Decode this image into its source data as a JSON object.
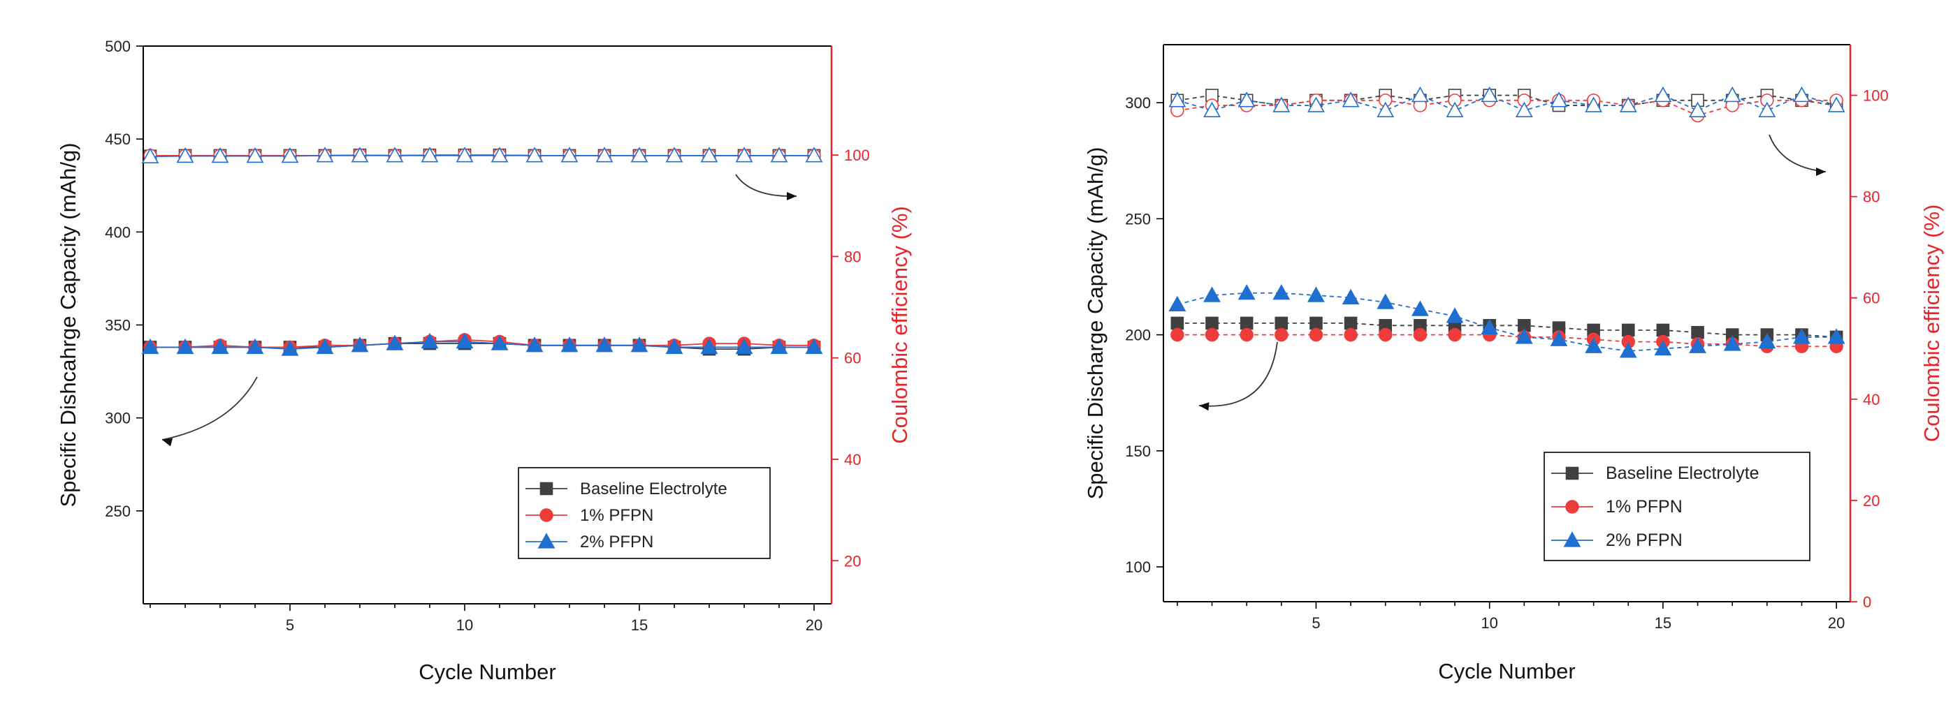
{
  "chart_data": [
    {
      "type": "line",
      "xlabel": "Cycle Number",
      "ylabel": "Specific Dishcahrge Capacity (mAh/g)",
      "y2label": "Coulombic efficiency (%)",
      "xlim": [
        0.8,
        20.5
      ],
      "ylim": [
        200,
        500
      ],
      "y2lim": [
        11.5,
        121.5
      ],
      "xticks": [
        5,
        10,
        15,
        20
      ],
      "yticks": [
        250,
        300,
        350,
        400,
        450,
        500
      ],
      "y2ticks": [
        20,
        40,
        60,
        80,
        100
      ],
      "legend_position": "bottom-right",
      "legend": [
        "Baseline Electrolyte",
        "1% PFPN",
        "2% PFPN"
      ],
      "colors": {
        "baseline": "#404040",
        "pfpn1": "#ee3b3b",
        "pfpn2": "#1f6fd1",
        "right_axis": "#e8232a"
      },
      "x": [
        1,
        2,
        3,
        4,
        5,
        6,
        7,
        8,
        9,
        10,
        11,
        12,
        13,
        14,
        15,
        16,
        17,
        18,
        19,
        20
      ],
      "capacity_series": [
        {
          "name": "Baseline Electrolyte",
          "marker": "square",
          "values": [
            338,
            338,
            338,
            338,
            338,
            338,
            339,
            340,
            340,
            340,
            340,
            339,
            339,
            339,
            339,
            338,
            337,
            337,
            338,
            338
          ]
        },
        {
          "name": "1% PFPN",
          "marker": "circle",
          "values": [
            338,
            338,
            339,
            338,
            338,
            339,
            339,
            340,
            341,
            342,
            341,
            339,
            339,
            339,
            339,
            339,
            340,
            340,
            339,
            339
          ]
        },
        {
          "name": "2% PFPN",
          "marker": "triangle",
          "values": [
            338,
            338,
            338,
            338,
            337,
            338,
            339,
            340,
            341,
            341,
            340,
            339,
            339,
            339,
            339,
            338,
            338,
            338,
            338,
            338
          ]
        }
      ],
      "efficiency_series": [
        {
          "name": "Baseline Electrolyte",
          "marker": "square",
          "values": [
            99.8,
            99.9,
            99.9,
            99.9,
            99.9,
            99.9,
            100,
            99.9,
            100,
            100,
            100,
            99.9,
            99.9,
            99.9,
            99.9,
            99.9,
            99.9,
            99.9,
            99.9,
            99.9
          ]
        },
        {
          "name": "1% PFPN",
          "marker": "circle",
          "values": [
            99.9,
            99.9,
            99.9,
            99.9,
            99.9,
            99.9,
            100,
            99.9,
            100,
            100,
            100,
            99.9,
            99.9,
            99.9,
            99.9,
            99.9,
            99.9,
            99.9,
            99.9,
            99.9
          ]
        },
        {
          "name": "2% PFPN",
          "marker": "triangle",
          "values": [
            99.7,
            99.8,
            99.8,
            99.8,
            99.8,
            99.9,
            99.9,
            99.9,
            99.9,
            99.9,
            99.9,
            99.9,
            99.9,
            99.9,
            99.9,
            99.9,
            99.9,
            99.9,
            99.9,
            99.9
          ]
        }
      ]
    },
    {
      "type": "line",
      "xlabel": "Cycle Number",
      "ylabel": "Specific Discharge Capacity (mAh/g)",
      "y2label": "Coulombic efficiency (%)",
      "xlim": [
        0.6,
        20.4
      ],
      "ylim": [
        85,
        325
      ],
      "y2lim": [
        0,
        110
      ],
      "xticks": [
        5,
        10,
        15,
        20
      ],
      "yticks": [
        100,
        150,
        200,
        250,
        300
      ],
      "y2ticks": [
        0,
        20,
        40,
        60,
        80,
        100
      ],
      "legend_position": "bottom-right",
      "legend": [
        "Baseline Electrolyte",
        "1% PFPN",
        "2% PFPN"
      ],
      "colors": {
        "baseline": "#404040",
        "pfpn1": "#ee3b3b",
        "pfpn2": "#1f6fd1",
        "right_axis": "#e8232a"
      },
      "x": [
        1,
        2,
        3,
        4,
        5,
        6,
        7,
        8,
        9,
        10,
        11,
        12,
        13,
        14,
        15,
        16,
        17,
        18,
        19,
        20
      ],
      "capacity_series": [
        {
          "name": "Baseline Electrolyte",
          "marker": "square",
          "values": [
            205,
            205,
            205,
            205,
            205,
            205,
            204,
            204,
            204,
            204,
            204,
            203,
            202,
            202,
            202,
            201,
            200,
            200,
            200,
            199
          ]
        },
        {
          "name": "1% PFPN",
          "marker": "circle",
          "values": [
            200,
            200,
            200,
            200,
            200,
            200,
            200,
            200,
            200,
            200,
            199,
            199,
            198,
            197,
            197,
            196,
            196,
            195,
            195,
            195
          ]
        },
        {
          "name": "2% PFPN",
          "marker": "triangle",
          "values": [
            213,
            217,
            218,
            218,
            217,
            216,
            214,
            211,
            208,
            203,
            199,
            198,
            195,
            193,
            194,
            195,
            196,
            197,
            199,
            199
          ]
        }
      ],
      "efficiency_series": [
        {
          "name": "Baseline Electrolyte",
          "marker": "square",
          "values": [
            99,
            100,
            99,
            98,
            99,
            99,
            100,
            99,
            100,
            100,
            100,
            98,
            98,
            98,
            99,
            99,
            99,
            100,
            99,
            98
          ]
        },
        {
          "name": "1% PFPN",
          "marker": "circle",
          "values": [
            97,
            98,
            98,
            98,
            99,
            99,
            99,
            98,
            99,
            99,
            99,
            99,
            99,
            98,
            99,
            96,
            98,
            99,
            99,
            99
          ]
        },
        {
          "name": "2% PFPN",
          "marker": "triangle",
          "values": [
            99,
            97,
            99,
            98,
            98,
            99,
            97,
            100,
            97,
            100,
            97,
            99,
            98,
            98,
            100,
            97,
            100,
            97,
            100,
            98
          ]
        }
      ]
    }
  ]
}
